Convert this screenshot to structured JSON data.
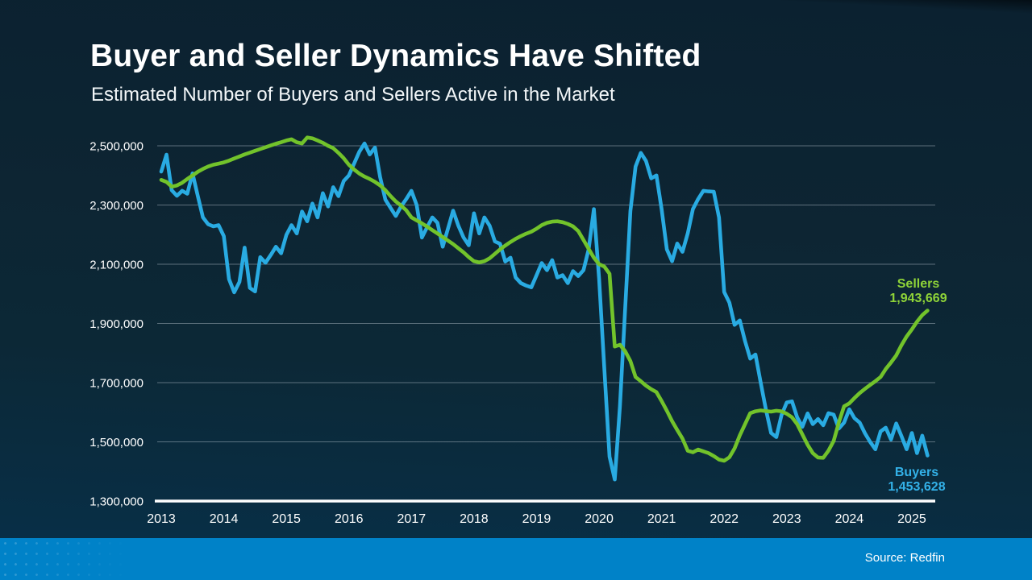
{
  "slide": {
    "title": "Buyer and Seller Dynamics Have Shifted",
    "subtitle": "Estimated Number of Buyers and Sellers Active in the Market",
    "source": "Source: Redfin"
  },
  "colors": {
    "background": "#0c2533",
    "buyers_line": "#29abe2",
    "sellers_line": "#72c32b",
    "gridline": "rgba(210,220,228,0.45)",
    "axis_line": "#ffffff",
    "footer_blue": "#0082c8"
  },
  "annotations": {
    "sellers": {
      "label": "Sellers",
      "value": "1,943,669"
    },
    "buyers": {
      "label": "Buyers",
      "value": "1,453,628"
    }
  },
  "chart_data": {
    "type": "line",
    "title": "Buyer and Seller Dynamics Have Shifted",
    "subtitle": "Estimated Number of Buyers and Sellers Active in the Market",
    "x_interval": "monthly",
    "x_range": [
      "2013-01",
      "2025-04"
    ],
    "x_tick_labels": [
      "2013",
      "2014",
      "2015",
      "2016",
      "2017",
      "2018",
      "2019",
      "2020",
      "2021",
      "2022",
      "2023",
      "2024",
      "2025"
    ],
    "y": {
      "min": 1300000,
      "max": 2500000,
      "tick_interval": 200000,
      "tick_values": [
        2500000,
        2300000,
        2100000,
        1900000,
        1700000,
        1500000,
        1300000
      ],
      "tick_labels": [
        "2,500,000",
        "2,300,000",
        "2,100,000",
        "1,900,000",
        "1,700,000",
        "1,500,000",
        "1,300,000"
      ]
    },
    "grid": true,
    "legend_position": "end-of-line-labels",
    "series": [
      {
        "name": "Buyers",
        "color": "#29abe2",
        "end_value": 1453628,
        "end_label": "1,453,628",
        "values": [
          2413000,
          2470000,
          2350000,
          2331000,
          2348000,
          2338000,
          2407000,
          2331000,
          2258000,
          2235000,
          2228000,
          2232000,
          2195000,
          2050000,
          2005000,
          2040000,
          2156000,
          2020000,
          2008000,
          2124000,
          2105000,
          2131000,
          2159000,
          2137000,
          2199000,
          2232000,
          2204000,
          2278000,
          2245000,
          2305000,
          2258000,
          2340000,
          2295000,
          2360000,
          2330000,
          2381000,
          2400000,
          2440000,
          2480000,
          2508000,
          2471000,
          2494000,
          2394000,
          2318000,
          2290000,
          2263000,
          2295000,
          2320000,
          2348000,
          2300000,
          2190000,
          2225000,
          2258000,
          2240000,
          2159000,
          2220000,
          2281000,
          2230000,
          2190000,
          2164000,
          2272000,
          2204000,
          2258000,
          2230000,
          2177000,
          2169000,
          2109000,
          2122000,
          2055000,
          2036000,
          2028000,
          2022000,
          2063000,
          2104000,
          2080000,
          2114000,
          2055000,
          2063000,
          2036000,
          2077000,
          2060000,
          2080000,
          2150000,
          2286000,
          2050000,
          1750000,
          1450000,
          1373000,
          1620000,
          1950000,
          2280000,
          2430000,
          2476000,
          2449000,
          2390000,
          2400000,
          2286000,
          2150000,
          2110000,
          2170000,
          2142000,
          2204000,
          2286000,
          2320000,
          2348000,
          2346000,
          2345000,
          2258000,
          2006000,
          1970000,
          1895000,
          1910000,
          1840000,
          1781000,
          1795000,
          1700000,
          1610000,
          1530000,
          1516000,
          1590000,
          1633000,
          1637000,
          1583000,
          1551000,
          1596000,
          1560000,
          1577000,
          1556000,
          1597000,
          1592000,
          1545000,
          1565000,
          1610000,
          1580000,
          1565000,
          1529000,
          1500000,
          1475000,
          1535000,
          1548000,
          1508000,
          1562000,
          1520000,
          1475000,
          1530000,
          1462000,
          1521000,
          1453628
        ]
      },
      {
        "name": "Sellers",
        "color": "#72c32b",
        "end_value": 1943669,
        "end_label": "1,943,669",
        "values": [
          2385000,
          2378000,
          2362000,
          2366000,
          2375000,
          2388000,
          2400000,
          2412000,
          2422000,
          2430000,
          2436000,
          2440000,
          2444000,
          2450000,
          2457000,
          2464000,
          2471000,
          2477000,
          2483000,
          2489000,
          2495000,
          2501000,
          2507000,
          2512000,
          2518000,
          2522000,
          2512000,
          2508000,
          2528000,
          2525000,
          2518000,
          2510000,
          2500000,
          2492000,
          2476000,
          2458000,
          2436000,
          2420000,
          2406000,
          2396000,
          2388000,
          2378000,
          2366000,
          2350000,
          2330000,
          2312000,
          2298000,
          2282000,
          2258000,
          2248000,
          2238000,
          2227000,
          2215000,
          2204000,
          2192000,
          2180000,
          2168000,
          2154000,
          2140000,
          2124000,
          2110000,
          2106000,
          2110000,
          2120000,
          2135000,
          2150000,
          2163000,
          2175000,
          2186000,
          2195000,
          2203000,
          2210000,
          2220000,
          2232000,
          2240000,
          2244000,
          2245000,
          2242000,
          2236000,
          2228000,
          2212000,
          2182000,
          2152000,
          2122000,
          2100000,
          2092000,
          2068000,
          1822000,
          1828000,
          1806000,
          1773000,
          1719000,
          1705000,
          1690000,
          1678000,
          1668000,
          1638000,
          1605000,
          1570000,
          1540000,
          1511000,
          1470000,
          1465000,
          1474000,
          1468000,
          1462000,
          1452000,
          1440000,
          1436000,
          1448000,
          1478000,
          1522000,
          1560000,
          1597000,
          1603000,
          1606000,
          1604000,
          1602000,
          1605000,
          1603000,
          1595000,
          1583000,
          1560000,
          1525000,
          1490000,
          1462000,
          1447000,
          1446000,
          1470000,
          1503000,
          1565000,
          1620000,
          1630000,
          1648000,
          1665000,
          1679000,
          1692000,
          1705000,
          1719000,
          1746000,
          1768000,
          1792000,
          1826000,
          1856000,
          1880000,
          1906000,
          1928000,
          1943669
        ]
      }
    ]
  }
}
